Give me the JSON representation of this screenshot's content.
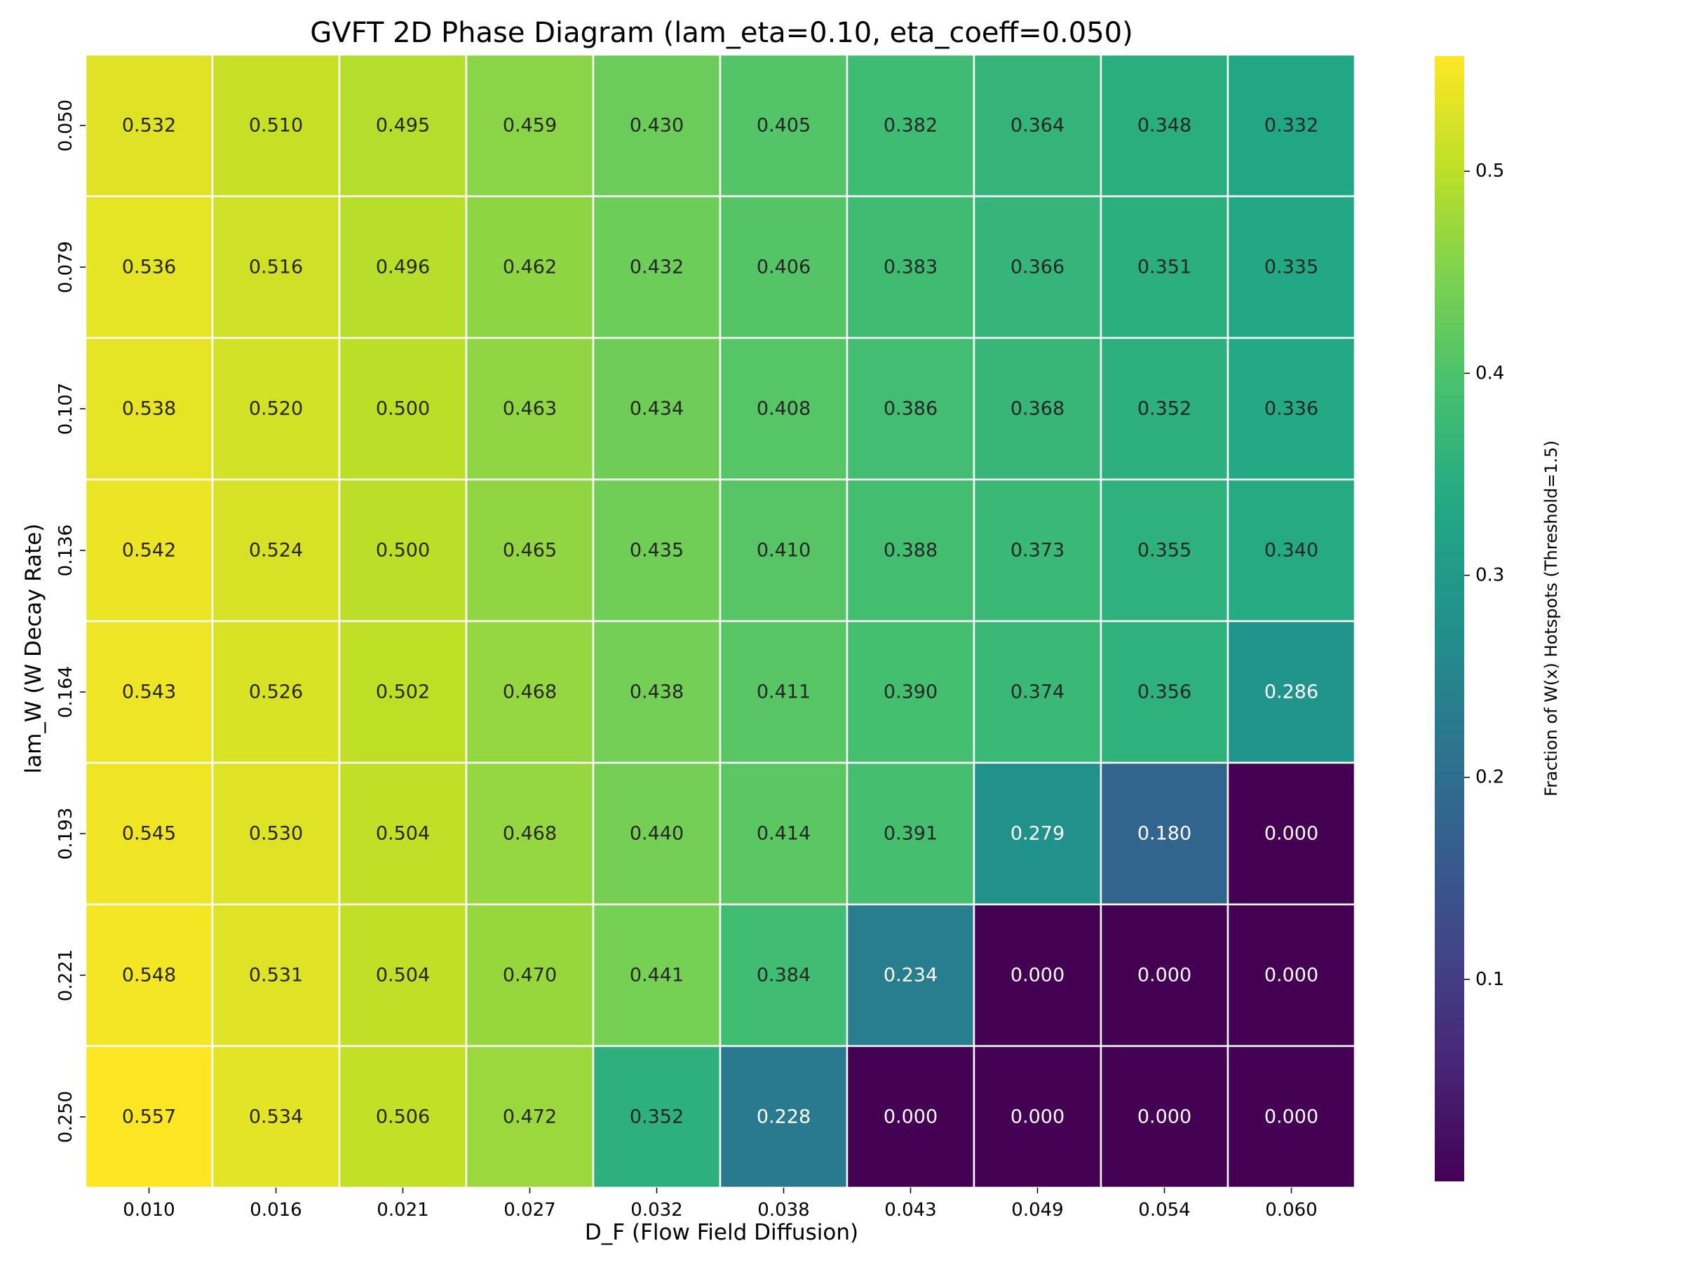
{
  "chart_data": {
    "type": "heatmap",
    "title": "GVFT 2D Phase Diagram (lam_eta=0.10, eta_coeff=0.050)",
    "xlabel": "D_F (Flow Field Diffusion)",
    "ylabel": "lam_W (W Decay Rate)",
    "colorbar_label": "Fraction of W(x) Hotspots (Threshold=1.5)",
    "colormap": "viridis",
    "vmin": 0.0,
    "vmax": 0.557,
    "colorbar_ticks": [
      "0.1",
      "0.2",
      "0.3",
      "0.4",
      "0.5"
    ],
    "x_categories": [
      "0.010",
      "0.016",
      "0.021",
      "0.027",
      "0.032",
      "0.038",
      "0.043",
      "0.049",
      "0.054",
      "0.060"
    ],
    "y_categories": [
      "0.050",
      "0.079",
      "0.107",
      "0.136",
      "0.164",
      "0.193",
      "0.221",
      "0.250"
    ],
    "values": [
      [
        0.532,
        0.51,
        0.495,
        0.459,
        0.43,
        0.405,
        0.382,
        0.364,
        0.348,
        0.332
      ],
      [
        0.536,
        0.516,
        0.496,
        0.462,
        0.432,
        0.406,
        0.383,
        0.366,
        0.351,
        0.335
      ],
      [
        0.538,
        0.52,
        0.5,
        0.463,
        0.434,
        0.408,
        0.386,
        0.368,
        0.352,
        0.336
      ],
      [
        0.542,
        0.524,
        0.5,
        0.465,
        0.435,
        0.41,
        0.388,
        0.373,
        0.355,
        0.34
      ],
      [
        0.543,
        0.526,
        0.502,
        0.468,
        0.438,
        0.411,
        0.39,
        0.374,
        0.356,
        0.286
      ],
      [
        0.545,
        0.53,
        0.504,
        0.468,
        0.44,
        0.414,
        0.391,
        0.279,
        0.18,
        0.0
      ],
      [
        0.548,
        0.531,
        0.504,
        0.47,
        0.441,
        0.384,
        0.234,
        0.0,
        0.0,
        0.0
      ],
      [
        0.557,
        0.534,
        0.506,
        0.472,
        0.352,
        0.228,
        0.0,
        0.0,
        0.0,
        0.0
      ]
    ],
    "cell_label_colors": {
      "dark": "#262626",
      "light": "#ffffff"
    },
    "grid_line_color": "#ffffff"
  }
}
